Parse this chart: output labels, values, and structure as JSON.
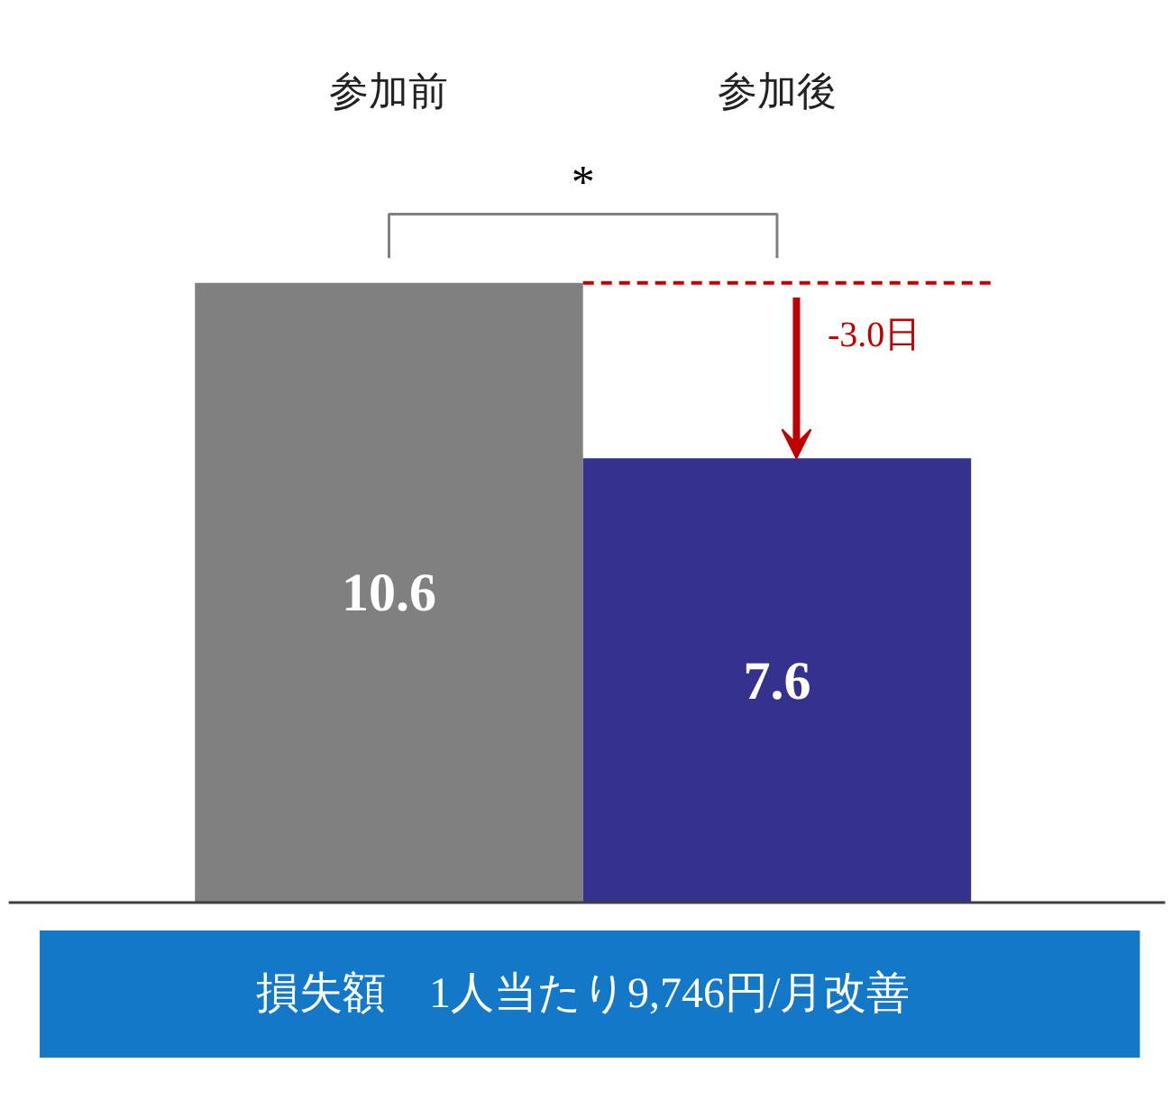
{
  "chart_data": {
    "type": "bar",
    "categories": [
      "参加前",
      "参加後"
    ],
    "values": [
      10.6,
      7.6
    ],
    "colors": [
      "#808080",
      "#35318e"
    ],
    "data_labels": true,
    "ref_lines": [
      {
        "axis": "y",
        "value": 10.6,
        "color": "#c00000",
        "line_style": "dashed"
      }
    ],
    "annotations": [
      "*",
      "-3.0日",
      "損失額　1人当たり9,746円/月改善"
    ]
  }
}
